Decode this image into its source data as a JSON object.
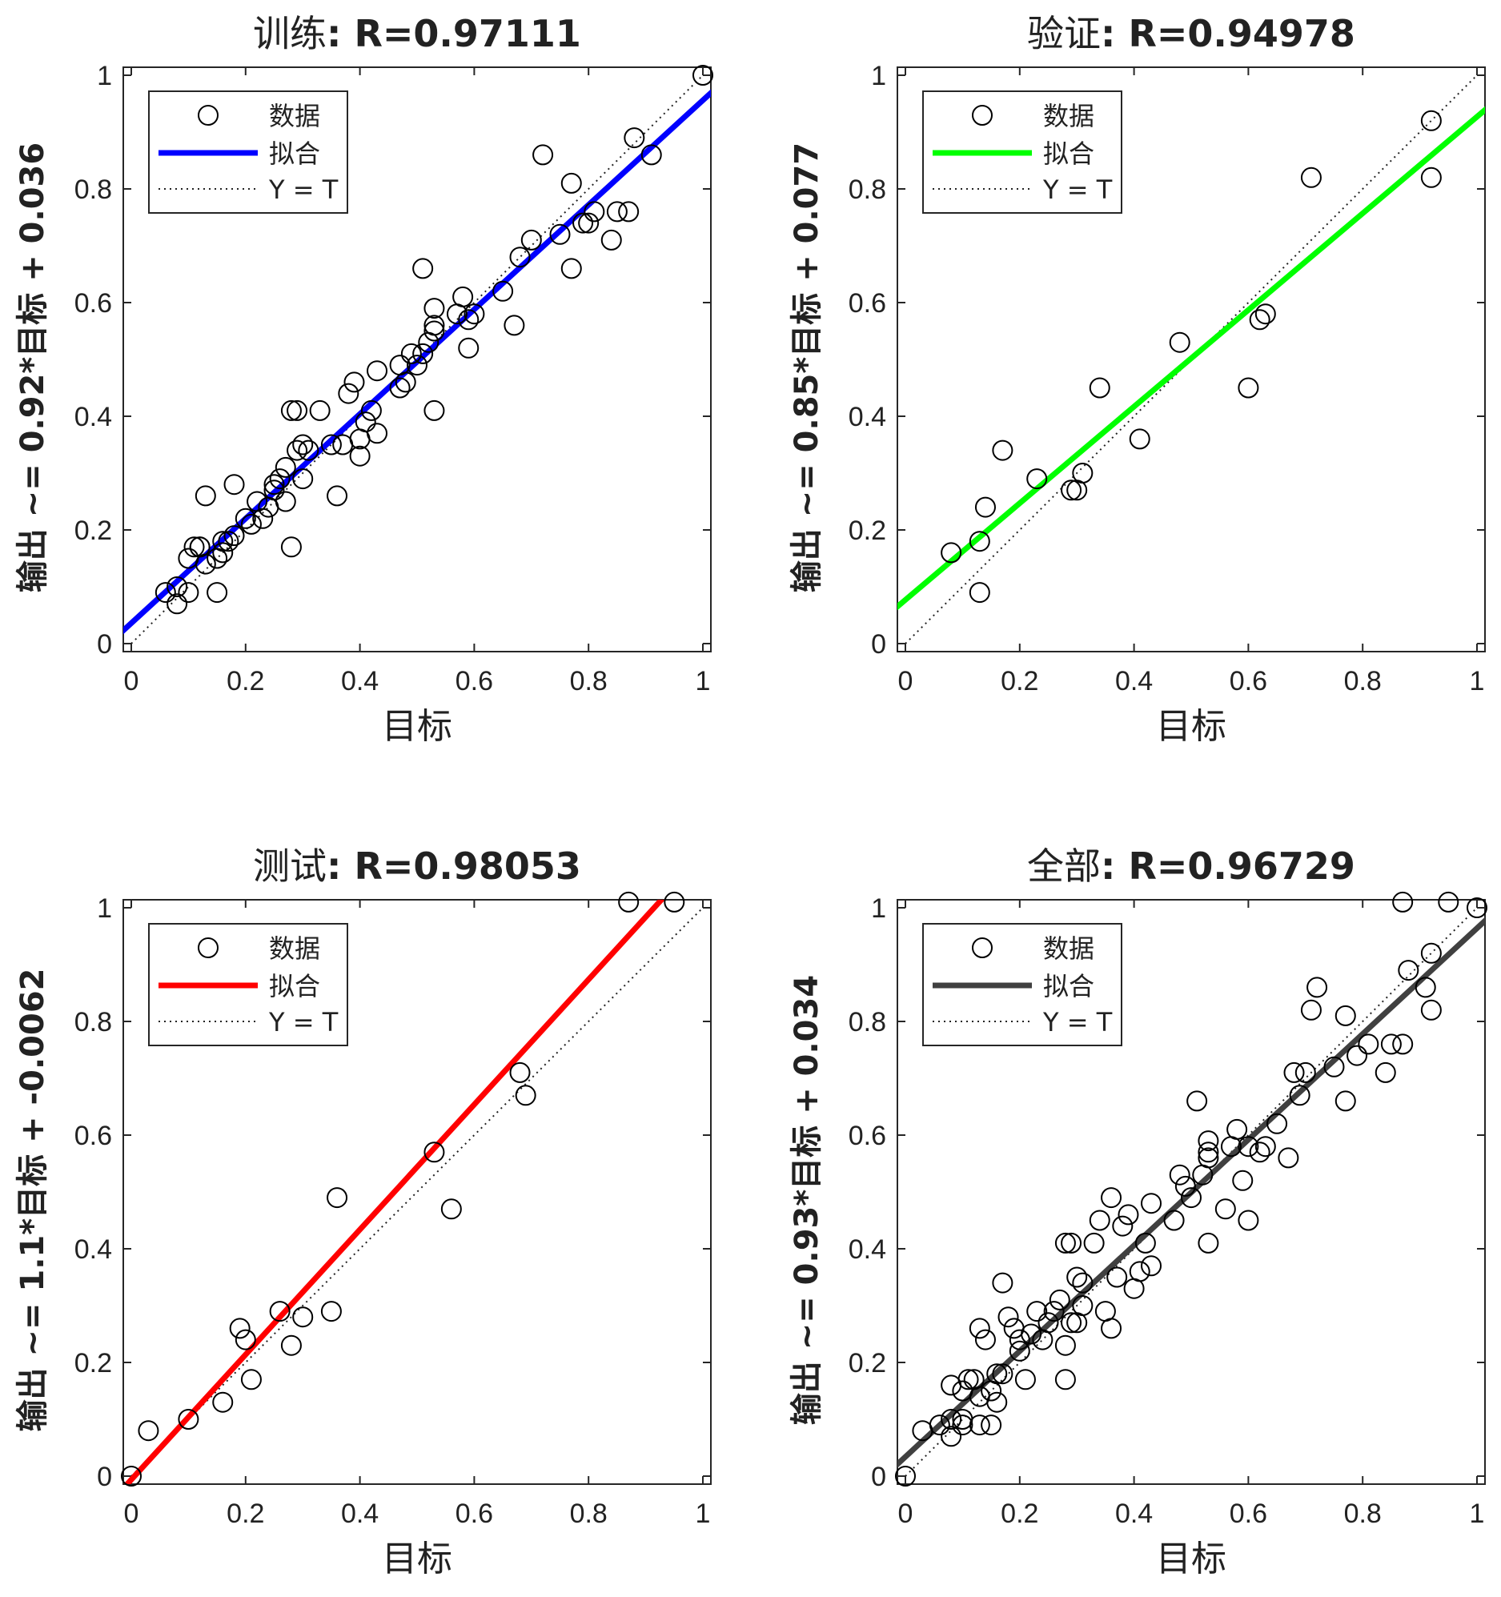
{
  "chart_data": [
    {
      "type": "scatter",
      "title_prefix": "训练",
      "title_stat": ": R=0.97111",
      "ylabel": "输出 ~= 0.92*目标 + 0.036",
      "xlabel": "目标",
      "xlim": [
        0,
        1
      ],
      "ylim": [
        0,
        1
      ],
      "xticks": [
        "0",
        "0.2",
        "0.4",
        "0.6",
        "0.8",
        "1"
      ],
      "yticks": [
        "0",
        "0.2",
        "0.4",
        "0.6",
        "0.8",
        "1"
      ],
      "fit": {
        "slope": 0.92,
        "intercept": 0.036,
        "color": "#0000ff"
      },
      "legend": {
        "data": "数据",
        "fit": "拟合",
        "ref": "Y = T",
        "placement": "top-left"
      },
      "points": [
        [
          0.06,
          0.09
        ],
        [
          0.08,
          0.07
        ],
        [
          0.08,
          0.1
        ],
        [
          0.1,
          0.09
        ],
        [
          0.1,
          0.15
        ],
        [
          0.11,
          0.17
        ],
        [
          0.12,
          0.17
        ],
        [
          0.12,
          0.17
        ],
        [
          0.13,
          0.14
        ],
        [
          0.15,
          0.09
        ],
        [
          0.15,
          0.15
        ],
        [
          0.16,
          0.16
        ],
        [
          0.16,
          0.18
        ],
        [
          0.17,
          0.18
        ],
        [
          0.18,
          0.19
        ],
        [
          0.18,
          0.28
        ],
        [
          0.13,
          0.26
        ],
        [
          0.2,
          0.22
        ],
        [
          0.21,
          0.21
        ],
        [
          0.22,
          0.25
        ],
        [
          0.23,
          0.22
        ],
        [
          0.24,
          0.24
        ],
        [
          0.25,
          0.27
        ],
        [
          0.25,
          0.28
        ],
        [
          0.26,
          0.29
        ],
        [
          0.27,
          0.31
        ],
        [
          0.27,
          0.25
        ],
        [
          0.28,
          0.17
        ],
        [
          0.28,
          0.41
        ],
        [
          0.29,
          0.41
        ],
        [
          0.29,
          0.34
        ],
        [
          0.3,
          0.35
        ],
        [
          0.3,
          0.29
        ],
        [
          0.31,
          0.34
        ],
        [
          0.33,
          0.41
        ],
        [
          0.35,
          0.35
        ],
        [
          0.36,
          0.26
        ],
        [
          0.37,
          0.35
        ],
        [
          0.38,
          0.44
        ],
        [
          0.39,
          0.46
        ],
        [
          0.4,
          0.33
        ],
        [
          0.4,
          0.36
        ],
        [
          0.41,
          0.39
        ],
        [
          0.42,
          0.41
        ],
        [
          0.43,
          0.37
        ],
        [
          0.43,
          0.48
        ],
        [
          0.47,
          0.45
        ],
        [
          0.47,
          0.49
        ],
        [
          0.48,
          0.46
        ],
        [
          0.49,
          0.51
        ],
        [
          0.5,
          0.49
        ],
        [
          0.51,
          0.51
        ],
        [
          0.51,
          0.66
        ],
        [
          0.52,
          0.53
        ],
        [
          0.53,
          0.55
        ],
        [
          0.53,
          0.56
        ],
        [
          0.53,
          0.59
        ],
        [
          0.53,
          0.41
        ],
        [
          0.57,
          0.58
        ],
        [
          0.58,
          0.61
        ],
        [
          0.59,
          0.52
        ],
        [
          0.59,
          0.57
        ],
        [
          0.6,
          0.58
        ],
        [
          0.65,
          0.62
        ],
        [
          0.67,
          0.56
        ],
        [
          0.68,
          0.68
        ],
        [
          0.7,
          0.71
        ],
        [
          0.72,
          0.86
        ],
        [
          0.75,
          0.72
        ],
        [
          0.77,
          0.66
        ],
        [
          0.77,
          0.81
        ],
        [
          0.79,
          0.74
        ],
        [
          0.8,
          0.74
        ],
        [
          0.81,
          0.76
        ],
        [
          0.84,
          0.71
        ],
        [
          0.85,
          0.76
        ],
        [
          0.87,
          0.76
        ],
        [
          0.88,
          0.89
        ],
        [
          0.91,
          0.86
        ],
        [
          1.0,
          1.0
        ]
      ]
    },
    {
      "type": "scatter",
      "title_prefix": "验证",
      "title_stat": ": R=0.94978",
      "ylabel": "输出 ~= 0.85*目标 + 0.077",
      "xlabel": "目标",
      "xlim": [
        0,
        1
      ],
      "ylim": [
        0,
        1
      ],
      "xticks": [
        "0",
        "0.2",
        "0.4",
        "0.6",
        "0.8",
        "1"
      ],
      "yticks": [
        "0",
        "0.2",
        "0.4",
        "0.6",
        "0.8",
        "1"
      ],
      "fit": {
        "slope": 0.85,
        "intercept": 0.077,
        "color": "#00ff00"
      },
      "legend": {
        "data": "数据",
        "fit": "拟合",
        "ref": "Y = T",
        "placement": "top-left"
      },
      "points": [
        [
          0.08,
          0.16
        ],
        [
          0.13,
          0.09
        ],
        [
          0.13,
          0.18
        ],
        [
          0.14,
          0.24
        ],
        [
          0.17,
          0.34
        ],
        [
          0.23,
          0.29
        ],
        [
          0.29,
          0.27
        ],
        [
          0.3,
          0.27
        ],
        [
          0.31,
          0.3
        ],
        [
          0.34,
          0.45
        ],
        [
          0.41,
          0.36
        ],
        [
          0.48,
          0.53
        ],
        [
          0.6,
          0.45
        ],
        [
          0.62,
          0.57
        ],
        [
          0.63,
          0.58
        ],
        [
          0.71,
          0.82
        ],
        [
          0.92,
          0.82
        ],
        [
          0.92,
          0.92
        ]
      ]
    },
    {
      "type": "scatter",
      "title_prefix": "测试",
      "title_stat": ": R=0.98053",
      "ylabel": "输出 ~= 1.1*目标 + -0.0062",
      "xlabel": "目标",
      "xlim": [
        0,
        1
      ],
      "ylim": [
        0,
        1
      ],
      "xticks": [
        "0",
        "0.2",
        "0.4",
        "0.6",
        "0.8",
        "1"
      ],
      "yticks": [
        "0",
        "0.2",
        "0.4",
        "0.6",
        "0.8",
        "1"
      ],
      "fit": {
        "slope": 1.1,
        "intercept": -0.0062,
        "color": "#ff0000"
      },
      "legend": {
        "data": "数据",
        "fit": "拟合",
        "ref": "Y = T",
        "placement": "top-left"
      },
      "points": [
        [
          0.0,
          0.0
        ],
        [
          0.03,
          0.08
        ],
        [
          0.1,
          0.1
        ],
        [
          0.16,
          0.13
        ],
        [
          0.19,
          0.26
        ],
        [
          0.2,
          0.24
        ],
        [
          0.21,
          0.17
        ],
        [
          0.26,
          0.29
        ],
        [
          0.28,
          0.23
        ],
        [
          0.3,
          0.28
        ],
        [
          0.35,
          0.29
        ],
        [
          0.36,
          0.49
        ],
        [
          0.53,
          0.57
        ],
        [
          0.56,
          0.47
        ],
        [
          0.68,
          0.71
        ],
        [
          0.69,
          0.67
        ],
        [
          0.87,
          1.01
        ],
        [
          0.95,
          1.01
        ]
      ]
    },
    {
      "type": "scatter",
      "title_prefix": "全部",
      "title_stat": ": R=0.96729",
      "ylabel": "输出 ~= 0.93*目标 + 0.034",
      "xlabel": "目标",
      "xlim": [
        0,
        1
      ],
      "ylim": [
        0,
        1
      ],
      "xticks": [
        "0",
        "0.2",
        "0.4",
        "0.6",
        "0.8",
        "1"
      ],
      "yticks": [
        "0",
        "0.2",
        "0.4",
        "0.6",
        "0.8",
        "1"
      ],
      "fit": {
        "slope": 0.93,
        "intercept": 0.034,
        "color": "#404040"
      },
      "legend": {
        "data": "数据",
        "fit": "拟合",
        "ref": "Y = T",
        "placement": "top-left"
      },
      "points": [
        [
          0.0,
          0.0
        ],
        [
          0.03,
          0.08
        ],
        [
          0.06,
          0.09
        ],
        [
          0.08,
          0.07
        ],
        [
          0.08,
          0.1
        ],
        [
          0.08,
          0.16
        ],
        [
          0.1,
          0.09
        ],
        [
          0.1,
          0.1
        ],
        [
          0.1,
          0.15
        ],
        [
          0.11,
          0.17
        ],
        [
          0.12,
          0.17
        ],
        [
          0.13,
          0.14
        ],
        [
          0.13,
          0.09
        ],
        [
          0.13,
          0.26
        ],
        [
          0.14,
          0.24
        ],
        [
          0.15,
          0.09
        ],
        [
          0.15,
          0.15
        ],
        [
          0.16,
          0.13
        ],
        [
          0.16,
          0.18
        ],
        [
          0.17,
          0.34
        ],
        [
          0.17,
          0.18
        ],
        [
          0.18,
          0.28
        ],
        [
          0.19,
          0.26
        ],
        [
          0.2,
          0.24
        ],
        [
          0.2,
          0.22
        ],
        [
          0.21,
          0.17
        ],
        [
          0.22,
          0.25
        ],
        [
          0.23,
          0.29
        ],
        [
          0.24,
          0.24
        ],
        [
          0.25,
          0.27
        ],
        [
          0.26,
          0.29
        ],
        [
          0.27,
          0.31
        ],
        [
          0.28,
          0.17
        ],
        [
          0.28,
          0.23
        ],
        [
          0.28,
          0.41
        ],
        [
          0.29,
          0.41
        ],
        [
          0.29,
          0.27
        ],
        [
          0.3,
          0.27
        ],
        [
          0.3,
          0.35
        ],
        [
          0.31,
          0.3
        ],
        [
          0.31,
          0.34
        ],
        [
          0.33,
          0.41
        ],
        [
          0.34,
          0.45
        ],
        [
          0.35,
          0.29
        ],
        [
          0.36,
          0.49
        ],
        [
          0.36,
          0.26
        ],
        [
          0.37,
          0.35
        ],
        [
          0.38,
          0.44
        ],
        [
          0.39,
          0.46
        ],
        [
          0.4,
          0.33
        ],
        [
          0.41,
          0.36
        ],
        [
          0.42,
          0.41
        ],
        [
          0.43,
          0.37
        ],
        [
          0.43,
          0.48
        ],
        [
          0.47,
          0.45
        ],
        [
          0.48,
          0.53
        ],
        [
          0.49,
          0.51
        ],
        [
          0.5,
          0.49
        ],
        [
          0.51,
          0.66
        ],
        [
          0.52,
          0.53
        ],
        [
          0.53,
          0.56
        ],
        [
          0.53,
          0.59
        ],
        [
          0.53,
          0.57
        ],
        [
          0.53,
          0.41
        ],
        [
          0.56,
          0.47
        ],
        [
          0.57,
          0.58
        ],
        [
          0.58,
          0.61
        ],
        [
          0.59,
          0.52
        ],
        [
          0.6,
          0.45
        ],
        [
          0.6,
          0.58
        ],
        [
          0.62,
          0.57
        ],
        [
          0.63,
          0.58
        ],
        [
          0.65,
          0.62
        ],
        [
          0.67,
          0.56
        ],
        [
          0.68,
          0.71
        ],
        [
          0.69,
          0.67
        ],
        [
          0.7,
          0.71
        ],
        [
          0.71,
          0.82
        ],
        [
          0.72,
          0.86
        ],
        [
          0.75,
          0.72
        ],
        [
          0.77,
          0.66
        ],
        [
          0.77,
          0.81
        ],
        [
          0.79,
          0.74
        ],
        [
          0.81,
          0.76
        ],
        [
          0.84,
          0.71
        ],
        [
          0.85,
          0.76
        ],
        [
          0.87,
          0.76
        ],
        [
          0.87,
          1.01
        ],
        [
          0.88,
          0.89
        ],
        [
          0.91,
          0.86
        ],
        [
          0.92,
          0.82
        ],
        [
          0.92,
          0.92
        ],
        [
          0.95,
          1.01
        ],
        [
          1.0,
          1.0
        ]
      ]
    }
  ]
}
